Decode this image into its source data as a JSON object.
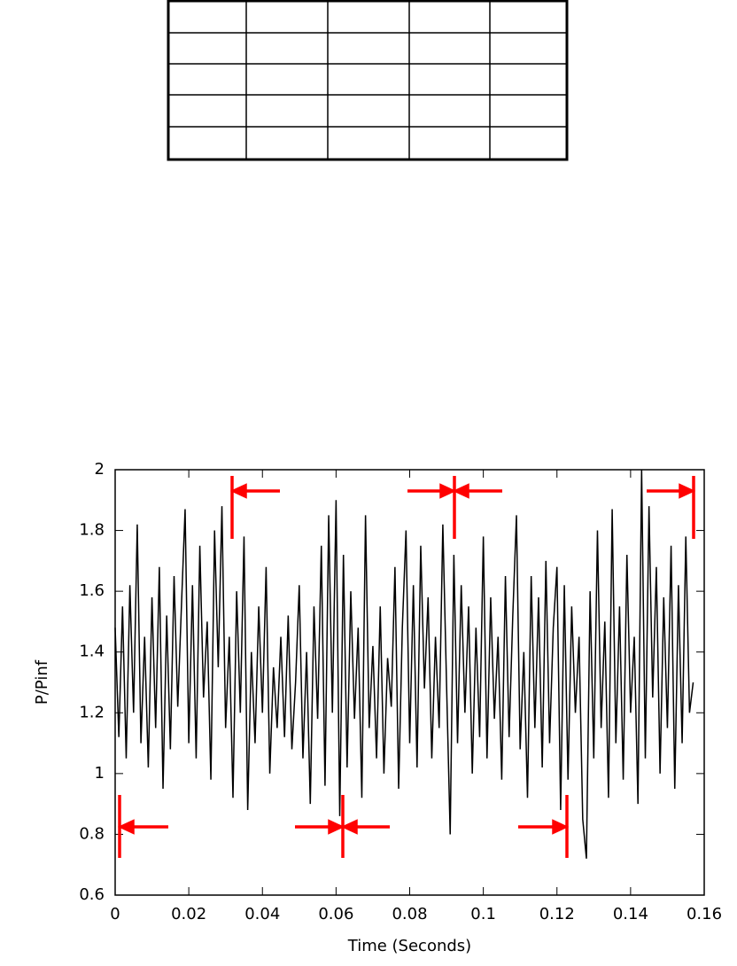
{
  "chart_data": {
    "type": "line",
    "xlabel": "Time (Seconds)",
    "ylabel": "P/Pinf",
    "color": "#000000",
    "xlim": [
      0,
      0.16
    ],
    "ylim": [
      0.6,
      2
    ],
    "xticks": [
      0,
      0.02,
      0.04,
      0.06,
      0.08,
      0.1,
      0.12,
      0.14,
      0.16
    ],
    "yticks": [
      0.6,
      0.8,
      1,
      1.2,
      1.4,
      1.6,
      1.8,
      2
    ],
    "x": [
      0,
      0.001,
      0.002,
      0.003,
      0.004,
      0.005,
      0.006,
      0.007,
      0.008,
      0.009,
      0.01,
      0.011,
      0.012,
      0.013,
      0.014,
      0.015,
      0.016,
      0.017,
      0.018,
      0.019,
      0.02,
      0.021,
      0.022,
      0.023,
      0.024,
      0.025,
      0.026,
      0.027,
      0.028,
      0.029,
      0.03,
      0.031,
      0.032,
      0.033,
      0.034,
      0.035,
      0.036,
      0.037,
      0.038,
      0.039,
      0.04,
      0.041,
      0.042,
      0.043,
      0.044,
      0.045,
      0.046,
      0.047,
      0.048,
      0.049,
      0.05,
      0.051,
      0.052,
      0.053,
      0.054,
      0.055,
      0.056,
      0.057,
      0.058,
      0.059,
      0.06,
      0.061,
      0.062,
      0.063,
      0.064,
      0.065,
      0.066,
      0.067,
      0.068,
      0.069,
      0.07,
      0.071,
      0.072,
      0.073,
      0.074,
      0.075,
      0.076,
      0.077,
      0.078,
      0.079,
      0.08,
      0.081,
      0.082,
      0.083,
      0.084,
      0.085,
      0.086,
      0.087,
      0.088,
      0.089,
      0.09,
      0.091,
      0.092,
      0.093,
      0.094,
      0.095,
      0.096,
      0.097,
      0.098,
      0.099,
      0.1,
      0.101,
      0.102,
      0.103,
      0.104,
      0.105,
      0.106,
      0.107,
      0.108,
      0.109,
      0.11,
      0.111,
      0.112,
      0.113,
      0.114,
      0.115,
      0.116,
      0.117,
      0.118,
      0.119,
      0.12,
      0.121,
      0.122,
      0.123,
      0.124,
      0.125,
      0.126,
      0.127,
      0.128,
      0.129,
      0.13,
      0.131,
      0.132,
      0.133,
      0.134,
      0.135,
      0.136,
      0.137,
      0.138,
      0.139,
      0.14,
      0.141,
      0.142,
      0.143,
      0.144,
      0.145,
      0.146,
      0.147,
      0.148,
      0.149,
      0.15,
      0.151,
      0.152,
      0.153,
      0.154,
      0.155,
      0.156,
      0.157
    ],
    "values": [
      1.48,
      1.12,
      1.55,
      1.05,
      1.62,
      1.2,
      1.82,
      1.1,
      1.45,
      1.02,
      1.58,
      1.15,
      1.68,
      0.95,
      1.52,
      1.08,
      1.65,
      1.22,
      1.55,
      1.87,
      1.1,
      1.62,
      1.05,
      1.75,
      1.25,
      1.5,
      0.98,
      1.8,
      1.35,
      1.88,
      1.15,
      1.45,
      0.92,
      1.6,
      1.2,
      1.78,
      0.88,
      1.4,
      1.1,
      1.55,
      1.2,
      1.68,
      1.0,
      1.35,
      1.15,
      1.45,
      1.12,
      1.52,
      1.08,
      1.3,
      1.62,
      1.05,
      1.4,
      0.9,
      1.55,
      1.18,
      1.75,
      0.96,
      1.85,
      1.2,
      1.9,
      0.86,
      1.72,
      1.02,
      1.6,
      1.18,
      1.48,
      0.92,
      1.85,
      1.15,
      1.42,
      1.05,
      1.55,
      1.0,
      1.38,
      1.22,
      1.68,
      0.95,
      1.48,
      1.8,
      1.1,
      1.62,
      1.02,
      1.75,
      1.28,
      1.58,
      1.05,
      1.45,
      1.15,
      1.82,
      1.3,
      0.8,
      1.72,
      1.1,
      1.62,
      1.2,
      1.55,
      1.0,
      1.48,
      1.12,
      1.78,
      1.05,
      1.58,
      1.18,
      1.45,
      0.98,
      1.65,
      1.12,
      1.52,
      1.85,
      1.08,
      1.4,
      0.92,
      1.65,
      1.15,
      1.58,
      1.02,
      1.7,
      1.1,
      1.48,
      1.68,
      0.88,
      1.62,
      0.98,
      1.55,
      1.2,
      1.45,
      0.85,
      0.72,
      1.6,
      1.05,
      1.8,
      1.15,
      1.5,
      0.92,
      1.87,
      1.1,
      1.55,
      0.98,
      1.72,
      1.2,
      1.45,
      0.9,
      2.0,
      1.05,
      1.88,
      1.25,
      1.68,
      1.0,
      1.58,
      1.15,
      1.75,
      0.95,
      1.62,
      1.1,
      1.78,
      1.2,
      1.3
    ]
  }
}
